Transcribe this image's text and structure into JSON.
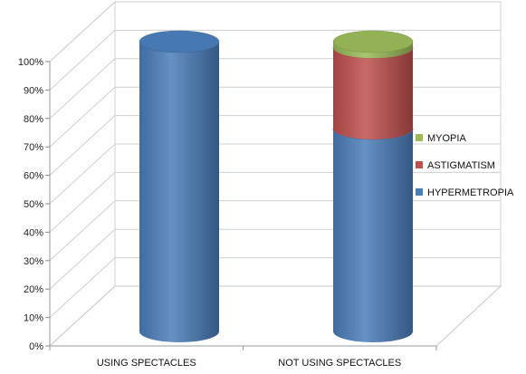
{
  "chart_data": {
    "type": "bar",
    "stacked": true,
    "style": "3d-cylinder",
    "categories": [
      "USING SPECTACLES",
      "NOT USING SPECTACLES"
    ],
    "series": [
      {
        "name": "HYPERMETROPIA",
        "values": [
          100,
          70
        ],
        "color": "#4a7ebb"
      },
      {
        "name": "ASTIGMATISM",
        "values": [
          0,
          28
        ],
        "color": "#c0504d"
      },
      {
        "name": "MYOPIA",
        "values": [
          0,
          2
        ],
        "color": "#9bbb59"
      }
    ],
    "yticks": [
      "0%",
      "10%",
      "20%",
      "30%",
      "40%",
      "50%",
      "60%",
      "70%",
      "80%",
      "90%",
      "100%"
    ],
    "ylim": [
      0,
      100
    ],
    "grid": true,
    "legend_position": "right"
  }
}
